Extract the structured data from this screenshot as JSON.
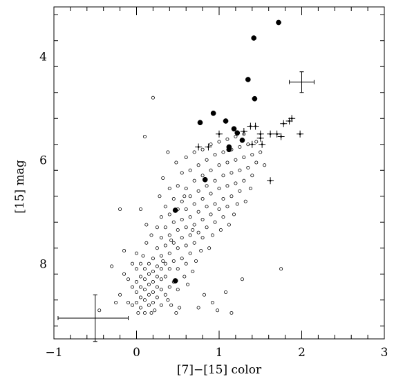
{
  "chart_data": {
    "type": "scatter",
    "title": "",
    "xlabel": "[7]−[15] color",
    "ylabel": "[15] mag",
    "xlim": [
      -1,
      3
    ],
    "ylim": [
      9.45,
      3.05
    ],
    "y_inverted": true,
    "grid": false,
    "legend": "none",
    "x_ticks": [
      -1,
      0,
      1,
      2,
      3
    ],
    "x_tick_labels": [
      "−1",
      "0",
      "1",
      "2",
      "3"
    ],
    "y_ticks": [
      4,
      6,
      8
    ],
    "y_tick_labels": [
      "4",
      "6",
      "8"
    ],
    "series": [
      {
        "marker": "open-circle",
        "points": [
          [
            -0.45,
            8.9
          ],
          [
            -0.3,
            8.05
          ],
          [
            -0.25,
            8.75
          ],
          [
            -0.2,
            8.6
          ],
          [
            -0.15,
            7.75
          ],
          [
            -0.15,
            8.2
          ],
          [
            -0.1,
            8.3
          ],
          [
            -0.1,
            8.75
          ],
          [
            -0.05,
            8.45
          ],
          [
            -0.05,
            8.8
          ],
          [
            0.0,
            8.1
          ],
          [
            0.0,
            8.35
          ],
          [
            0.0,
            8.55
          ],
          [
            0.0,
            8.75
          ],
          [
            0.02,
            8.95
          ],
          [
            0.05,
            8.0
          ],
          [
            0.05,
            8.25
          ],
          [
            0.05,
            8.45
          ],
          [
            0.05,
            8.65
          ],
          [
            0.05,
            8.85
          ],
          [
            0.08,
            7.85
          ],
          [
            0.1,
            8.1
          ],
          [
            0.1,
            8.3
          ],
          [
            0.1,
            8.5
          ],
          [
            0.1,
            8.7
          ],
          [
            0.1,
            8.95
          ],
          [
            0.12,
            7.25
          ],
          [
            0.12,
            7.6
          ],
          [
            0.15,
            8.0
          ],
          [
            0.15,
            8.2
          ],
          [
            0.15,
            8.4
          ],
          [
            0.15,
            8.6
          ],
          [
            0.15,
            8.8
          ],
          [
            0.18,
            7.45
          ],
          [
            0.2,
            7.9
          ],
          [
            0.2,
            8.15
          ],
          [
            0.2,
            8.35
          ],
          [
            0.2,
            8.55
          ],
          [
            0.2,
            8.75
          ],
          [
            0.22,
            8.9
          ],
          [
            0.25,
            7.3
          ],
          [
            0.25,
            7.7
          ],
          [
            0.25,
            8.05
          ],
          [
            0.25,
            8.25
          ],
          [
            0.25,
            8.45
          ],
          [
            0.25,
            8.65
          ],
          [
            0.28,
            6.7
          ],
          [
            0.3,
            7.1
          ],
          [
            0.3,
            7.5
          ],
          [
            0.3,
            7.85
          ],
          [
            0.3,
            8.1
          ],
          [
            0.3,
            8.3
          ],
          [
            0.3,
            8.5
          ],
          [
            0.3,
            8.8
          ],
          [
            0.32,
            6.35
          ],
          [
            0.35,
            6.9
          ],
          [
            0.35,
            7.3
          ],
          [
            0.35,
            7.65
          ],
          [
            0.35,
            8.0
          ],
          [
            0.35,
            8.25
          ],
          [
            0.35,
            8.6
          ],
          [
            0.38,
            5.85
          ],
          [
            0.4,
            6.55
          ],
          [
            0.4,
            7.05
          ],
          [
            0.4,
            7.45
          ],
          [
            0.4,
            7.8
          ],
          [
            0.4,
            8.1
          ],
          [
            0.4,
            8.45
          ],
          [
            0.42,
            8.8
          ],
          [
            0.45,
            6.75
          ],
          [
            0.45,
            7.2
          ],
          [
            0.45,
            7.6
          ],
          [
            0.45,
            7.95
          ],
          [
            0.45,
            8.35
          ],
          [
            0.48,
            6.05
          ],
          [
            0.5,
            6.5
          ],
          [
            0.5,
            6.95
          ],
          [
            0.5,
            7.35
          ],
          [
            0.5,
            7.7
          ],
          [
            0.5,
            8.1
          ],
          [
            0.5,
            8.5
          ],
          [
            0.52,
            8.85
          ],
          [
            0.55,
            6.25
          ],
          [
            0.55,
            6.8
          ],
          [
            0.55,
            7.15
          ],
          [
            0.55,
            7.5
          ],
          [
            0.55,
            7.9
          ],
          [
            0.58,
            8.25
          ],
          [
            0.6,
            5.95
          ],
          [
            0.6,
            6.55
          ],
          [
            0.6,
            6.95
          ],
          [
            0.6,
            7.3
          ],
          [
            0.6,
            7.65
          ],
          [
            0.6,
            8.0
          ],
          [
            0.62,
            8.4
          ],
          [
            0.65,
            6.2
          ],
          [
            0.65,
            6.7
          ],
          [
            0.65,
            7.1
          ],
          [
            0.65,
            7.45
          ],
          [
            0.65,
            7.8
          ],
          [
            0.68,
            8.15
          ],
          [
            0.7,
            5.85
          ],
          [
            0.7,
            6.4
          ],
          [
            0.7,
            6.85
          ],
          [
            0.7,
            7.25
          ],
          [
            0.7,
            7.6
          ],
          [
            0.72,
            7.95
          ],
          [
            0.75,
            6.1
          ],
          [
            0.75,
            6.6
          ],
          [
            0.75,
            7.0
          ],
          [
            0.75,
            7.4
          ],
          [
            0.78,
            7.75
          ],
          [
            0.8,
            5.8
          ],
          [
            0.8,
            6.3
          ],
          [
            0.8,
            6.75
          ],
          [
            0.8,
            7.15
          ],
          [
            0.8,
            7.5
          ],
          [
            0.82,
            8.6
          ],
          [
            0.85,
            6.0
          ],
          [
            0.85,
            6.5
          ],
          [
            0.85,
            6.9
          ],
          [
            0.85,
            7.3
          ],
          [
            0.88,
            7.7
          ],
          [
            0.9,
            5.7
          ],
          [
            0.9,
            6.2
          ],
          [
            0.9,
            6.65
          ],
          [
            0.9,
            7.05
          ],
          [
            0.92,
            7.45
          ],
          [
            0.95,
            5.9
          ],
          [
            0.95,
            6.4
          ],
          [
            0.95,
            6.85
          ],
          [
            0.95,
            7.2
          ],
          [
            0.98,
            8.9
          ],
          [
            1.0,
            5.65
          ],
          [
            1.0,
            6.1
          ],
          [
            1.0,
            6.55
          ],
          [
            1.0,
            6.95
          ],
          [
            1.02,
            7.35
          ],
          [
            1.05,
            5.85
          ],
          [
            1.05,
            6.3
          ],
          [
            1.05,
            6.75
          ],
          [
            1.05,
            7.1
          ],
          [
            1.08,
            8.55
          ],
          [
            1.1,
            5.6
          ],
          [
            1.1,
            6.05
          ],
          [
            1.1,
            6.5
          ],
          [
            1.1,
            6.9
          ],
          [
            1.12,
            7.25
          ],
          [
            1.15,
            5.8
          ],
          [
            1.15,
            6.25
          ],
          [
            1.15,
            6.7
          ],
          [
            1.18,
            7.05
          ],
          [
            1.2,
            5.55
          ],
          [
            1.2,
            6.0
          ],
          [
            1.2,
            6.45
          ],
          [
            1.22,
            6.85
          ],
          [
            1.25,
            5.75
          ],
          [
            1.25,
            6.2
          ],
          [
            1.25,
            6.6
          ],
          [
            1.28,
            8.3
          ],
          [
            1.3,
            5.5
          ],
          [
            1.3,
            5.95
          ],
          [
            1.3,
            6.4
          ],
          [
            1.32,
            6.8
          ],
          [
            1.35,
            5.7
          ],
          [
            1.35,
            6.15
          ],
          [
            1.38,
            6.55
          ],
          [
            1.4,
            5.9
          ],
          [
            1.4,
            6.3
          ],
          [
            1.45,
            5.65
          ],
          [
            1.45,
            6.05
          ],
          [
            1.5,
            5.85
          ],
          [
            1.55,
            6.1
          ],
          [
            1.75,
            8.1
          ],
          [
            0.2,
            4.8
          ],
          [
            0.1,
            5.55
          ],
          [
            0.05,
            6.95
          ],
          [
            -0.2,
            6.95
          ],
          [
            0.75,
            8.85
          ],
          [
            1.15,
            8.95
          ],
          [
            -0.05,
            8.0
          ],
          [
            0.0,
            7.8
          ],
          [
            0.38,
            8.7
          ],
          [
            0.48,
            8.95
          ],
          [
            0.92,
            8.75
          ],
          [
            0.58,
            6.7
          ],
          [
            0.42,
            7.55
          ],
          [
            0.32,
            7.95
          ],
          [
            0.18,
            8.95
          ],
          [
            0.68,
            7.35
          ]
        ]
      },
      {
        "marker": "filled-circle",
        "points": [
          [
            1.72,
            3.35
          ],
          [
            1.42,
            3.65
          ],
          [
            1.35,
            4.45
          ],
          [
            1.43,
            4.82
          ],
          [
            0.93,
            5.1
          ],
          [
            1.08,
            5.25
          ],
          [
            0.77,
            5.28
          ],
          [
            1.18,
            5.4
          ],
          [
            1.22,
            5.48
          ],
          [
            1.28,
            5.62
          ],
          [
            1.12,
            5.75
          ],
          [
            1.12,
            5.8
          ],
          [
            0.83,
            6.38
          ],
          [
            0.47,
            6.97
          ],
          [
            0.47,
            8.33
          ]
        ]
      },
      {
        "marker": "cross-errorbar",
        "points": [
          [
            1.38,
            5.35
          ],
          [
            1.44,
            5.35
          ],
          [
            1.5,
            5.5
          ],
          [
            1.3,
            5.45
          ],
          [
            1.5,
            5.58
          ],
          [
            1.52,
            5.7
          ],
          [
            1.62,
            5.5
          ],
          [
            1.7,
            5.5
          ],
          [
            1.75,
            5.55
          ],
          [
            1.78,
            5.3
          ],
          [
            1.85,
            5.25
          ],
          [
            1.88,
            5.2
          ],
          [
            1.98,
            5.5
          ],
          [
            1.0,
            5.5
          ],
          [
            1.4,
            5.7
          ],
          [
            0.75,
            5.75
          ],
          [
            0.87,
            5.75
          ],
          [
            1.62,
            6.4
          ]
        ]
      }
    ],
    "representative_error_bars": [
      {
        "x": -0.5,
        "y": 9.05,
        "xerr": [
          0.45,
          0.4
        ],
        "yerr": [
          0.45,
          0.45
        ]
      },
      {
        "x": 2.0,
        "y": 4.5,
        "xerr": [
          0.15,
          0.15
        ],
        "yerr": [
          0.2,
          0.2
        ]
      }
    ]
  }
}
